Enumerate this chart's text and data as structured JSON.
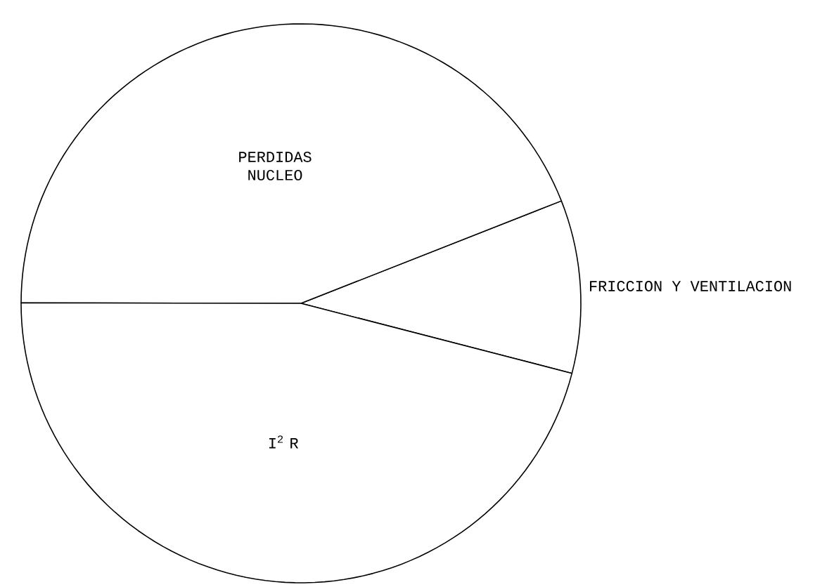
{
  "chart_data": {
    "type": "pie",
    "categories": [
      "FRICCION Y VENTILACION",
      "PERDIDAS NUCLEO",
      "I$^{2}$ R"
    ],
    "values": [
      10,
      44,
      46
    ],
    "colors": [
      "#ffffff",
      "#ffffff",
      "#ffffff"
    ]
  }
}
